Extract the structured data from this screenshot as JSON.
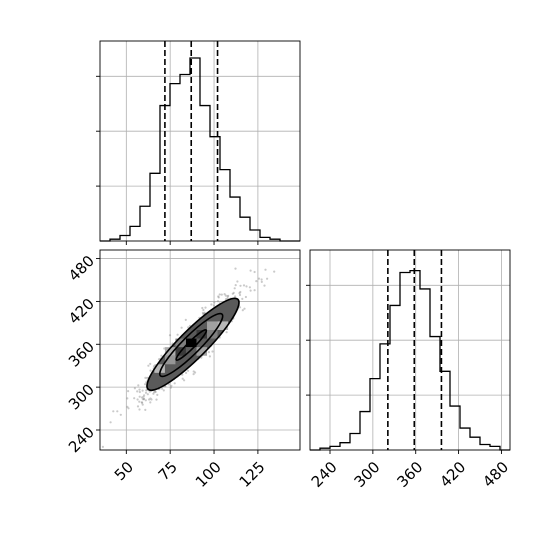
{
  "chart_data": [
    {
      "panel": "top-left",
      "type": "histogram",
      "title": "",
      "xlabel": "",
      "ylabel": "",
      "grid": true,
      "xlim": [
        35,
        149
      ],
      "ylim": [
        0,
        1
      ],
      "bin_edges": [
        35,
        40.7,
        46.4,
        52.1,
        57.8,
        63.5,
        69.2,
        74.9,
        80.6,
        86.3,
        92,
        97.7,
        103.4,
        109.1,
        114.8,
        120.5,
        126.2,
        131.9,
        137.6,
        143.3,
        149
      ],
      "values": [
        0.0,
        0.01,
        0.03,
        0.08,
        0.19,
        0.37,
        0.74,
        0.86,
        0.91,
        1.0,
        0.74,
        0.57,
        0.39,
        0.24,
        0.13,
        0.06,
        0.02,
        0.01,
        0.0,
        0.0
      ],
      "quantile_lines": [
        72,
        87,
        102
      ],
      "yticks": [
        0.3,
        0.6,
        0.9
      ],
      "xticks": [
        50,
        75,
        100,
        125
      ],
      "xtick_labels_shown": false
    },
    {
      "panel": "bottom-left",
      "type": "heatmap",
      "title": "",
      "xlabel": "",
      "ylabel": "",
      "grid": true,
      "xlim": [
        35,
        149
      ],
      "ylim": [
        212,
        492
      ],
      "xticks": [
        50,
        75,
        100,
        125
      ],
      "xtick_labels": [
        "50",
        "75",
        "100",
        "125"
      ],
      "yticks": [
        240,
        300,
        360,
        420,
        480
      ],
      "ytick_labels": [
        "240",
        "300",
        "360",
        "420",
        "480"
      ],
      "scatter_center": [
        87,
        358
      ],
      "scatter_sigma": [
        14,
        37
      ],
      "correlation": 0.93,
      "density_cells": [
        {
          "x": 87,
          "y": 362,
          "level": 1.0
        },
        {
          "x": 81,
          "y": 350,
          "level": 0.75
        },
        {
          "x": 93,
          "y": 374,
          "level": 0.75
        },
        {
          "x": 87,
          "y": 350,
          "level": 0.6
        },
        {
          "x": 93,
          "y": 362,
          "level": 0.6
        },
        {
          "x": 81,
          "y": 362,
          "level": 0.45
        },
        {
          "x": 99,
          "y": 374,
          "level": 0.45
        },
        {
          "x": 75,
          "y": 338,
          "level": 0.35
        },
        {
          "x": 99,
          "y": 386,
          "level": 0.3
        },
        {
          "x": 69,
          "y": 326,
          "level": 0.2
        },
        {
          "x": 105,
          "y": 386,
          "level": 0.2
        },
        {
          "x": 75,
          "y": 350,
          "level": 0.25
        },
        {
          "x": 93,
          "y": 350,
          "level": 0.3
        }
      ],
      "contours": [
        {
          "center": [
            87,
            359
          ],
          "a": 8.5,
          "b": 0.9,
          "level": "inner"
        },
        {
          "center": [
            87,
            359
          ],
          "a": 17.5,
          "b": 2.3,
          "level": "middle"
        },
        {
          "center": [
            88,
            360
          ],
          "a": 25.5,
          "b": 3.6,
          "level": "outer"
        }
      ],
      "contour_fills": [
        "#5a5a5a",
        "#a8a8a8",
        "#e6e6e6"
      ]
    },
    {
      "panel": "bottom-right",
      "type": "histogram",
      "title": "",
      "xlabel": "",
      "ylabel": "",
      "grid": true,
      "xlim": [
        212,
        492
      ],
      "ylim": [
        0,
        1
      ],
      "bin_edges": [
        212,
        226,
        240,
        254,
        268,
        282,
        296,
        310,
        324,
        338,
        352,
        366,
        380,
        394,
        408,
        422,
        436,
        450,
        464,
        478,
        492
      ],
      "values": [
        0.0,
        0.01,
        0.02,
        0.04,
        0.09,
        0.21,
        0.39,
        0.58,
        0.79,
        0.97,
        0.98,
        0.88,
        0.62,
        0.43,
        0.24,
        0.12,
        0.07,
        0.03,
        0.02,
        0.0
      ],
      "quantile_lines": [
        321,
        358,
        396
      ],
      "xticks": [
        240,
        300,
        360,
        420,
        480
      ],
      "xtick_labels": [
        "240",
        "300",
        "360",
        "420",
        "480"
      ],
      "yticks": [
        0.3,
        0.6,
        0.9
      ],
      "ytick_labels_shown": false
    }
  ]
}
